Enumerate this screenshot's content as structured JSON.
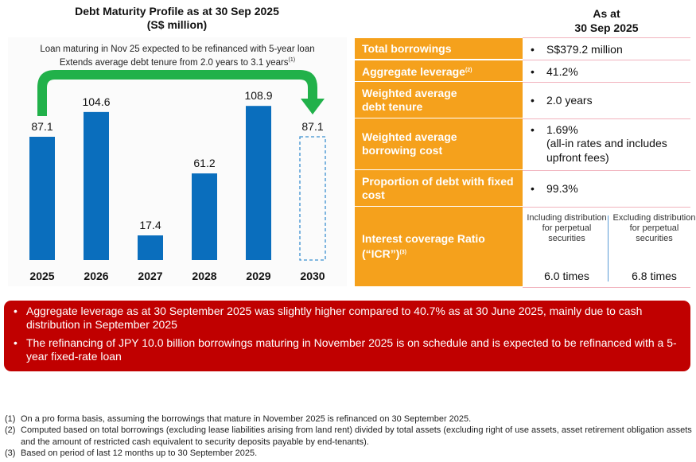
{
  "chart_data": {
    "type": "bar",
    "title": "Debt Maturity Profile as at 30 Sep 2025",
    "subtitle": "(S$ million)",
    "categories": [
      "2025",
      "2026",
      "2027",
      "2028",
      "2029",
      "2030"
    ],
    "values": [
      87.1,
      104.6,
      17.4,
      61.2,
      108.9,
      87.1
    ],
    "value_labels": [
      "87.1",
      "104.6",
      "17.4",
      "61.2",
      "108.9",
      "87.1"
    ],
    "bar_styles": [
      "solid",
      "solid",
      "solid",
      "solid",
      "solid",
      "dashed"
    ],
    "annotation_line1": "Loan maturing in Nov 25 expected to be refinanced with 5-year loan",
    "annotation_line2": "Extends average debt tenure from 2.0 years to 3.1 years",
    "annotation_footnote": "(1)",
    "arrow": {
      "from": "2025",
      "to": "2030"
    },
    "colors": {
      "bar": "#0a6ebd",
      "arrow": "#21b14a"
    },
    "grid": false
  },
  "table": {
    "header_line1": "As at",
    "header_line2": "30 Sep 2025",
    "rows": [
      {
        "label": "Total borrowings",
        "value": "S$379.2 million"
      },
      {
        "label": "Aggregate leverage",
        "sup": "(2)",
        "value": "41.2%"
      },
      {
        "label": "Weighted average debt tenure",
        "value": "2.0 years"
      },
      {
        "label": "Weighted average borrowing cost",
        "value": "1.69%",
        "value_note": "(all-in rates and includes upfront fees)"
      },
      {
        "label": "Proportion of debt with fixed cost",
        "value": "99.3%"
      },
      {
        "label": "Interest coverage Ratio (“ICR”)",
        "sup": "(3)"
      }
    ],
    "icr": [
      {
        "caption": "Including distribution for perpetual securities",
        "value": "6.0 times"
      },
      {
        "caption": "Excluding distribution for perpetual securities",
        "value": "6.8 times"
      }
    ],
    "bullet": "•",
    "colors": {
      "label_bg": "#f5a11c",
      "divider": "#f1b3bd"
    }
  },
  "highlights": {
    "bullet": "•",
    "items": [
      "Aggregate leverage as at 30 September 2025 was slightly higher compared to 40.7% as at 30 June 2025, mainly due to cash distribution in September 2025",
      "The refinancing of JPY 10.0 billion borrowings maturing in November 2025 is on schedule and is expected to be refinanced with a 5-year fixed-rate loan"
    ],
    "color": "#c00000"
  },
  "footnotes": [
    {
      "key": "(1)",
      "text": "On a pro forma basis, assuming the borrowings that mature in November 2025 is refinanced on 30 September 2025."
    },
    {
      "key": "(2)",
      "text": "Computed based on total borrowings (excluding lease liabilities arising from land rent) divided by total assets (excluding right of use assets, asset retirement obligation assets and the amount of restricted cash equivalent to security deposits payable by end-tenants)."
    },
    {
      "key": "(3)",
      "text": "Based on period of last 12 months up to 30 September 2025."
    }
  ]
}
